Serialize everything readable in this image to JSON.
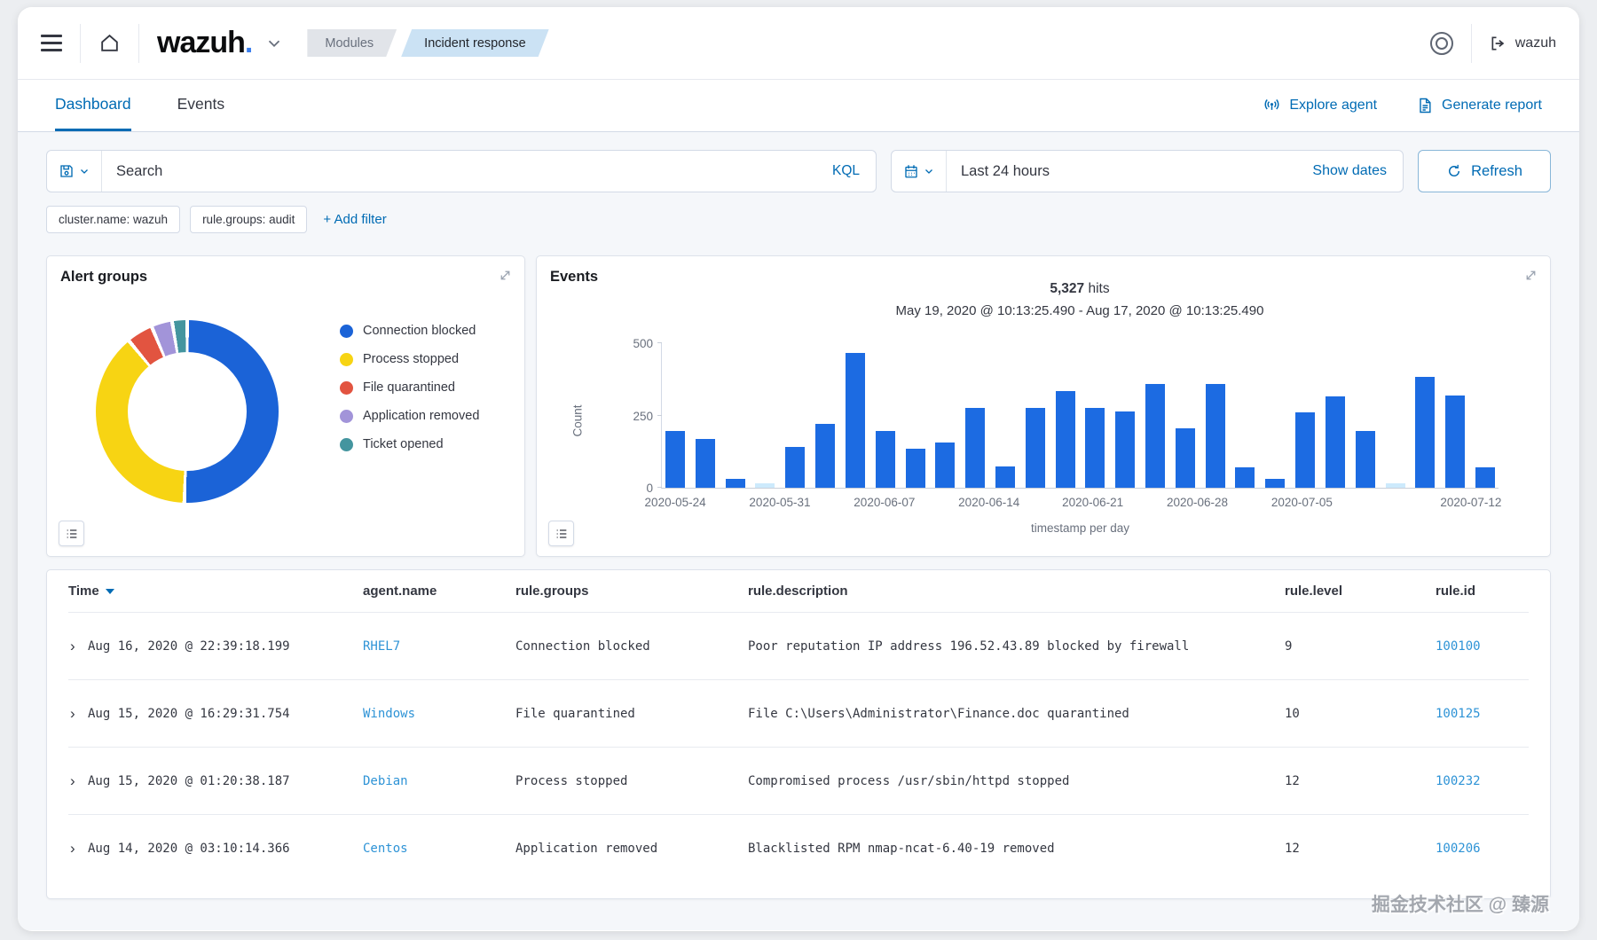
{
  "header": {
    "logo_text": "wazuh",
    "logo_dot": ".",
    "breadcrumbs": {
      "modules": "Modules",
      "current": "Incident response"
    },
    "account_label": "wazuh"
  },
  "tabs": {
    "dashboard": "Dashboard",
    "events": "Events",
    "explore_agent": "Explore agent",
    "generate_report": "Generate report"
  },
  "search": {
    "placeholder": "Search",
    "kql_label": "KQL",
    "time_range": "Last 24 hours",
    "show_dates": "Show dates",
    "refresh_label": "Refresh"
  },
  "filters": {
    "pills": [
      "cluster.name: wazuh",
      "rule.groups: audit"
    ],
    "add_filter": "+ Add filter"
  },
  "alert_groups_panel": {
    "title": "Alert groups"
  },
  "events_panel": {
    "title": "Events",
    "hits": "5,327",
    "hits_suffix": " hits",
    "date_range": "May 19, 2020 @ 10:13:25.490 - Aug 17, 2020 @ 10:13:25.490"
  },
  "chart_data": [
    {
      "type": "pie",
      "title": "Alert groups",
      "donut": true,
      "legend_position": "right",
      "labels": [
        "Connection blocked",
        "Process stopped",
        "File quarantined",
        "Application removed",
        "Ticket opened"
      ],
      "values": [
        50,
        38,
        4,
        3,
        2
      ],
      "colors": [
        "#1b63d7",
        "#f7d413",
        "#e25440",
        "#a294d9",
        "#44959f"
      ]
    },
    {
      "type": "bar",
      "title": "Events",
      "hits_total": "5,327",
      "xlabel": "timestamp per day",
      "ylabel": "Count",
      "ylim": [
        0,
        500
      ],
      "yticks": [
        0,
        250,
        500
      ],
      "x": [
        "2020-05-21",
        "2020-05-23",
        "2020-05-25",
        "2020-05-27",
        "2020-05-29",
        "2020-05-31",
        "2020-06-02",
        "2020-06-04",
        "2020-06-06",
        "2020-06-08",
        "2020-06-10",
        "2020-06-12",
        "2020-06-14",
        "2020-06-16",
        "2020-06-18",
        "2020-06-20",
        "2020-06-22",
        "2020-06-24",
        "2020-06-26",
        "2020-06-28",
        "2020-06-30",
        "2020-07-02",
        "2020-07-04",
        "2020-07-06",
        "2020-07-08",
        "2020-07-10",
        "2020-07-12",
        "2020-07-14"
      ],
      "values": [
        195,
        170,
        30,
        15,
        140,
        220,
        465,
        195,
        135,
        155,
        275,
        75,
        275,
        335,
        275,
        265,
        360,
        205,
        360,
        70,
        30,
        260,
        315,
        195,
        15,
        385,
        320,
        70
      ],
      "faded_indices": [
        3,
        24
      ],
      "bar_color": "#1c6be2",
      "faded_color": "#cdeafc",
      "x_tick_labels": [
        "2020-05-24",
        "2020-05-31",
        "2020-06-07",
        "2020-06-14",
        "2020-06-21",
        "2020-06-28",
        "2020-07-05",
        "2020-07-12"
      ],
      "x_tick_pos_pct": [
        1.6,
        14.1,
        26.6,
        39.1,
        51.5,
        64,
        76.5,
        96.7
      ],
      "grid": false,
      "legend_position": "none"
    }
  ],
  "table": {
    "columns": [
      "Time",
      "agent.name",
      "rule.groups",
      "rule.description",
      "rule.level",
      "rule.id"
    ],
    "sort_column": "Time",
    "row_chevron": "›",
    "rows": [
      {
        "time": "Aug 16, 2020 @ 22:39:18.199",
        "agent": "RHEL7",
        "groups": "Connection blocked",
        "description": "Poor reputation IP address 196.52.43.89 blocked by firewall",
        "level": "9",
        "id": "100100"
      },
      {
        "time": "Aug 15, 2020 @ 16:29:31.754",
        "agent": "Windows",
        "groups": "File quarantined",
        "description": "File C:\\Users\\Administrator\\Finance.doc quarantined",
        "level": "10",
        "id": "100125"
      },
      {
        "time": "Aug 15, 2020 @ 01:20:38.187",
        "agent": "Debian",
        "groups": "Process stopped",
        "description": "Compromised process /usr/sbin/httpd stopped",
        "level": "12",
        "id": "100232"
      },
      {
        "time": "Aug 14, 2020 @ 03:10:14.366",
        "agent": "Centos",
        "groups": "Application removed",
        "description": "Blacklisted RPM nmap-ncat-6.40-19 removed",
        "level": "12",
        "id": "100206"
      }
    ]
  },
  "watermark": "掘金技术社区 @ 臻源"
}
